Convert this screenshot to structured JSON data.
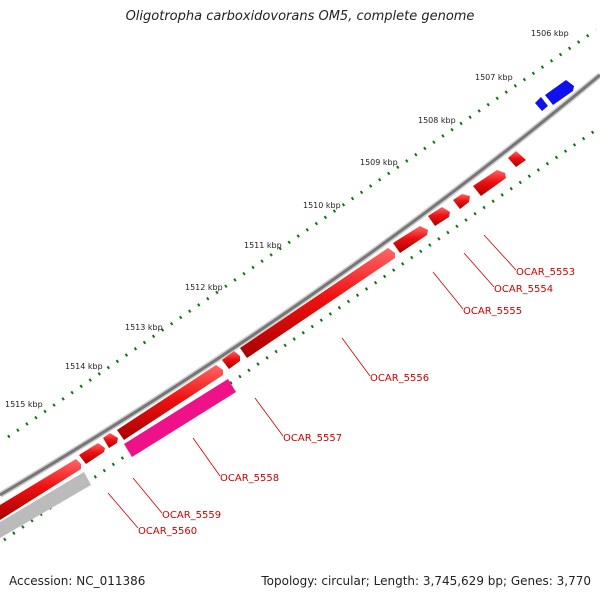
{
  "header": {
    "title": "Oligotropha carboxidovorans OM5, complete genome"
  },
  "footer": {
    "accession": "Accession: NC_011386",
    "summary": "Topology: circular; Length: 3,745,629 bp; Genes: 3,770"
  },
  "scale": {
    "unit": "kbp",
    "labels": [
      "1506 kbp",
      "1507 kbp",
      "1508 kbp",
      "1509 kbp",
      "1510 kbp",
      "1511 kbp",
      "1512 kbp",
      "1513 kbp",
      "1514 kbp",
      "1515 kbp"
    ]
  },
  "genes": [
    {
      "locus": "OCAR_5553",
      "color": "#ee1111"
    },
    {
      "locus": "OCAR_5554",
      "color": "#ee1111"
    },
    {
      "locus": "OCAR_5555",
      "color": "#ee1111"
    },
    {
      "locus": "OCAR_5556",
      "color": "#ee1111"
    },
    {
      "locus": "OCAR_5557",
      "color": "#ee1111"
    },
    {
      "locus": "OCAR_5558",
      "color": "#ee1188"
    },
    {
      "locus": "OCAR_5559",
      "color": "#ee1111"
    },
    {
      "locus": "OCAR_5560",
      "color": "#bbbbbb"
    }
  ],
  "colors": {
    "forward_cds": "#ee1111",
    "blue_feature": "#1111ee",
    "magenta_feature": "#ee1188",
    "gray_feature": "#bbbbbb",
    "backbone": "#777777",
    "tick": "#117711",
    "label": "#cc0000"
  }
}
